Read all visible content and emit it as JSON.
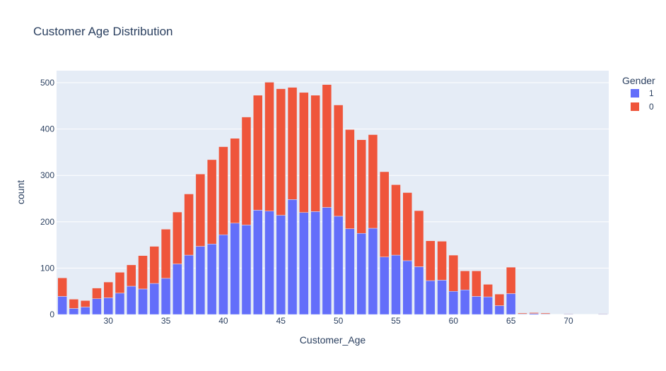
{
  "chart_data": {
    "type": "bar",
    "stacked": true,
    "title": "Customer Age Distribution",
    "xlabel": "Customer_Age",
    "ylabel": "count",
    "legend_title": "Gender",
    "legend_position": "top-right",
    "grid": true,
    "xlim": [
      25.5,
      73.5
    ],
    "ylim": [
      0,
      526
    ],
    "xticks": [
      30,
      35,
      40,
      45,
      50,
      55,
      60,
      65,
      70
    ],
    "yticks": [
      0,
      100,
      200,
      300,
      400,
      500
    ],
    "x": [
      26,
      27,
      28,
      29,
      30,
      31,
      32,
      33,
      34,
      35,
      36,
      37,
      38,
      39,
      40,
      41,
      42,
      43,
      44,
      45,
      46,
      47,
      48,
      49,
      50,
      51,
      52,
      53,
      54,
      55,
      56,
      57,
      58,
      59,
      60,
      61,
      62,
      63,
      64,
      65,
      66,
      67,
      68,
      70,
      73
    ],
    "series": [
      {
        "name": "1",
        "color": "#636efa",
        "values": [
          39,
          13,
          16,
          34,
          36,
          46,
          61,
          55,
          67,
          78,
          109,
          128,
          147,
          152,
          172,
          197,
          193,
          225,
          223,
          214,
          248,
          220,
          222,
          231,
          212,
          185,
          175,
          186,
          124,
          128,
          116,
          103,
          73,
          74,
          50,
          53,
          39,
          38,
          19,
          45,
          1,
          2,
          1,
          1,
          1
        ]
      },
      {
        "name": "0",
        "color": "#ef553b",
        "values": [
          40,
          20,
          14,
          23,
          34,
          45,
          46,
          72,
          80,
          106,
          112,
          132,
          156,
          182,
          190,
          183,
          233,
          248,
          278,
          273,
          242,
          259,
          251,
          265,
          240,
          214,
          202,
          202,
          184,
          152,
          147,
          121,
          86,
          84,
          78,
          41,
          55,
          27,
          25,
          57,
          2,
          2,
          2,
          1,
          1
        ]
      }
    ]
  }
}
